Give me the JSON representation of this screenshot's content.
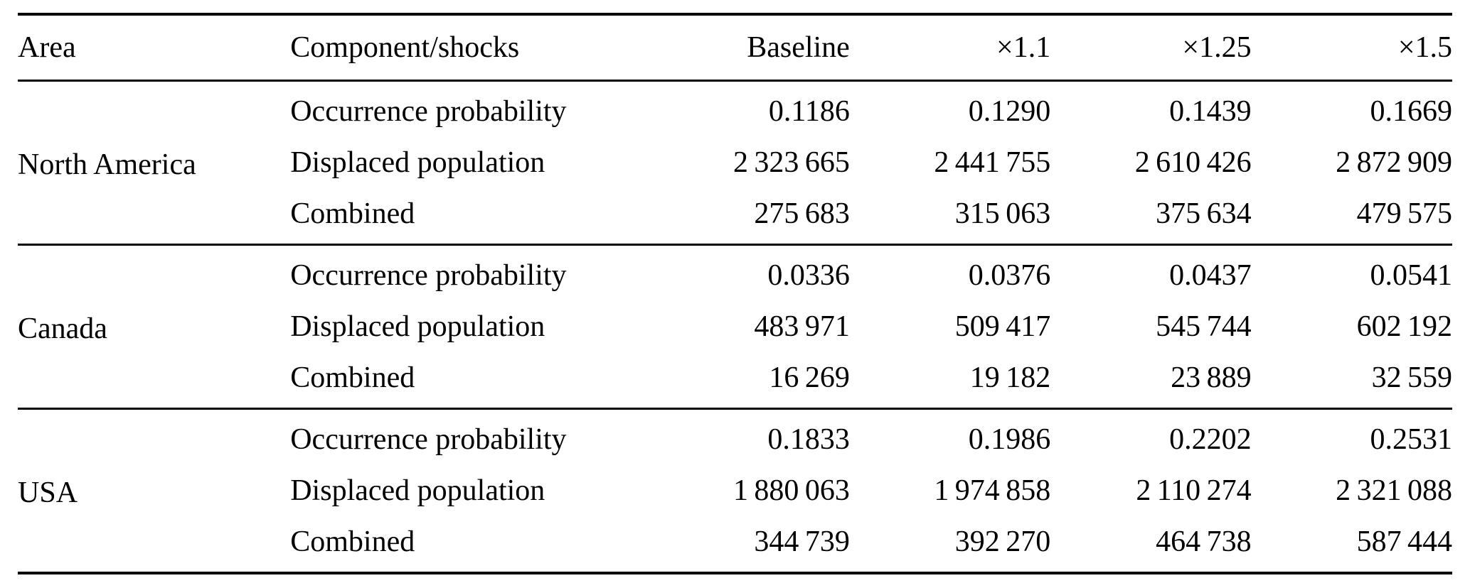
{
  "table": {
    "headers": {
      "area": "Area",
      "component": "Component/shocks",
      "cols": [
        "Baseline",
        "×1.1",
        "×1.25",
        "×1.5"
      ]
    },
    "groups": [
      {
        "area": "North America",
        "rows": [
          {
            "label": "Occurrence probability",
            "values": [
              "0.1186",
              "0.1290",
              "0.1439",
              "0.1669"
            ]
          },
          {
            "label": "Displaced population",
            "values": [
              "2 323 665",
              "2 441 755",
              "2 610 426",
              "2 872 909"
            ]
          },
          {
            "label": "Combined",
            "values": [
              "275 683",
              "315 063",
              "375 634",
              "479 575"
            ]
          }
        ]
      },
      {
        "area": "Canada",
        "rows": [
          {
            "label": "Occurrence probability",
            "values": [
              "0.0336",
              "0.0376",
              "0.0437",
              "0.0541"
            ]
          },
          {
            "label": "Displaced population",
            "values": [
              "483 971",
              "509 417",
              "545 744",
              "602 192"
            ]
          },
          {
            "label": "Combined",
            "values": [
              "16 269",
              "19 182",
              "23 889",
              "32 559"
            ]
          }
        ]
      },
      {
        "area": "USA",
        "rows": [
          {
            "label": "Occurrence probability",
            "values": [
              "0.1833",
              "0.1986",
              "0.2202",
              "0.2531"
            ]
          },
          {
            "label": "Displaced population",
            "values": [
              "1 880 063",
              "1 974 858",
              "2 110 274",
              "2 321 088"
            ]
          },
          {
            "label": "Combined",
            "values": [
              "344 739",
              "392 270",
              "464 738",
              "587 444"
            ]
          }
        ]
      }
    ]
  },
  "chart_data": {
    "type": "table",
    "columns": [
      "Area",
      "Component/shocks",
      "Baseline",
      "×1.1",
      "×1.25",
      "×1.5"
    ],
    "rows": [
      [
        "North America",
        "Occurrence probability",
        0.1186,
        0.129,
        0.1439,
        0.1669
      ],
      [
        "North America",
        "Displaced population",
        2323665,
        2441755,
        2610426,
        2872909
      ],
      [
        "North America",
        "Combined",
        275683,
        315063,
        375634,
        479575
      ],
      [
        "Canada",
        "Occurrence probability",
        0.0336,
        0.0376,
        0.0437,
        0.0541
      ],
      [
        "Canada",
        "Displaced population",
        483971,
        509417,
        545744,
        602192
      ],
      [
        "Canada",
        "Combined",
        16269,
        19182,
        23889,
        32559
      ],
      [
        "USA",
        "Occurrence probability",
        0.1833,
        0.1986,
        0.2202,
        0.2531
      ],
      [
        "USA",
        "Displaced population",
        1880063,
        1974858,
        2110274,
        2321088
      ],
      [
        "USA",
        "Combined",
        344739,
        392270,
        464738,
        587444
      ]
    ]
  }
}
